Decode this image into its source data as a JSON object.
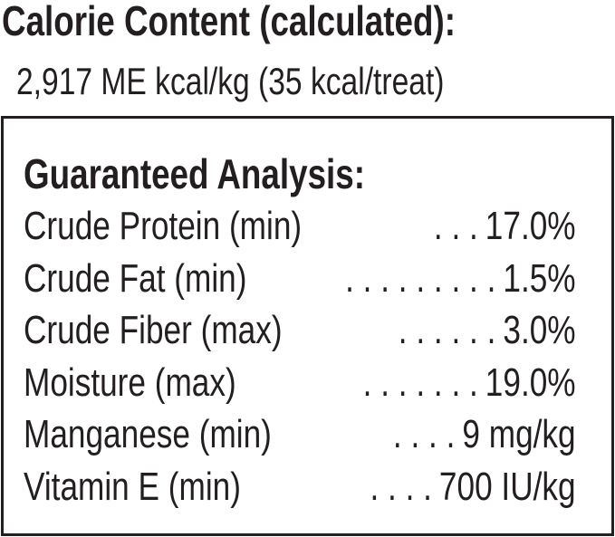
{
  "calorie": {
    "title": "Calorie Content (calculated):",
    "value": "2,917 ME kcal/kg (35 kcal/treat)"
  },
  "analysis": {
    "title": "Guaranteed Analysis:",
    "rows": [
      {
        "label": "Crude Protein (min)",
        "dots": ". . .",
        "value": "17.0%"
      },
      {
        "label": "Crude Fat (min)",
        "dots": ". . . . . . . . .",
        "value": "1.5%"
      },
      {
        "label": "Crude Fiber (max)",
        "dots": ". . . . . .",
        "value": "3.0%"
      },
      {
        "label": "Moisture (max)",
        "dots": ". . . . . . .",
        "value": "19.0%"
      },
      {
        "label": "Manganese (min)",
        "dots": ". . . .",
        "value": "9 mg/kg"
      },
      {
        "label": "Vitamin E (min)",
        "dots": ". . . .",
        "value": "700 IU/kg"
      }
    ]
  }
}
